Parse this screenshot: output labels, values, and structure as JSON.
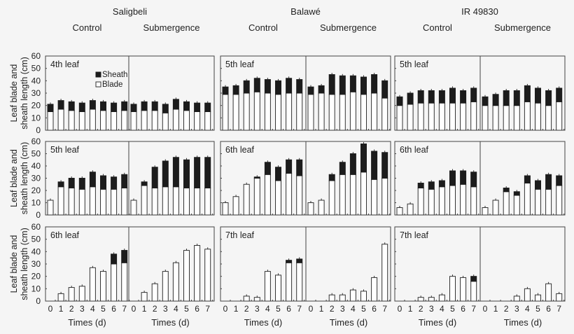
{
  "chart_data": {
    "type": "bar",
    "stacked": true,
    "ylim": [
      0,
      60
    ],
    "yticks": [
      0,
      10,
      20,
      30,
      40,
      50,
      60
    ],
    "xticks": [
      0,
      1,
      2,
      3,
      4,
      5,
      6,
      7
    ],
    "xlabel": "Times (d)",
    "ylabel_lines": [
      "Leaf blade and",
      "sheath length (cm)"
    ],
    "legend": [
      {
        "name": "Sheath",
        "color": "#1c1c1c"
      },
      {
        "name": "Blade",
        "color": "#ffffff"
      }
    ],
    "legend_placement": "top-right of first panel",
    "grid": false,
    "cultivars": [
      "Saligbeli",
      "Balawé",
      "IR 49830"
    ],
    "conditions": [
      "Control",
      "Submergence"
    ],
    "rows": [
      {
        "leaves": [
          "4th leaf",
          "5th leaf",
          "5th leaf"
        ],
        "panels": [
          {
            "blade": [
              15,
              17,
              16,
              15,
              17,
              16,
              15,
              16
            ],
            "sheath": [
              6,
              7,
              7,
              7,
              7,
              7,
              7,
              7
            ]
          },
          {
            "blade": [
              15,
              16,
              16,
              14,
              17,
              16,
              15,
              15
            ],
            "sheath": [
              6,
              7,
              7,
              7,
              8,
              7,
              7,
              7
            ]
          },
          {
            "blade": [
              29,
              29,
              30,
              31,
              30,
              29,
              30,
              30
            ],
            "sheath": [
              6,
              7,
              10,
              11,
              11,
              11,
              12,
              11
            ]
          },
          {
            "blade": [
              29,
              30,
              29,
              29,
              31,
              29,
              30,
              26
            ],
            "sheath": [
              6,
              6,
              16,
              15,
              13,
              14,
              15,
              14
            ]
          },
          {
            "blade": [
              20,
              21,
              22,
              22,
              22,
              22,
              22,
              23
            ],
            "sheath": [
              7,
              9,
              10,
              10,
              10,
              12,
              10,
              11
            ]
          },
          {
            "blade": [
              20,
              20,
              20,
              20,
              23,
              22,
              20,
              23
            ],
            "sheath": [
              7,
              9,
              12,
              12,
              13,
              12,
              12,
              11
            ]
          }
        ]
      },
      {
        "leaves": [
          "5th leaf",
          "6th leaf",
          "6th leaf"
        ],
        "panels": [
          {
            "blade": [
              12,
              23,
              22,
              21,
              23,
              21,
              21,
              22
            ],
            "sheath": [
              0,
              4,
              8,
              9,
              12,
              11,
              10,
              11
            ]
          },
          {
            "blade": [
              12,
              24,
              22,
              23,
              23,
              22,
              22,
              22
            ],
            "sheath": [
              0,
              3,
              17,
              21,
              24,
              23,
              25,
              25
            ]
          },
          {
            "blade": [
              10,
              15,
              25,
              30,
              33,
              28,
              34,
              32
            ],
            "sheath": [
              0,
              0,
              0,
              1,
              10,
              11,
              11,
              13
            ]
          },
          {
            "blade": [
              10,
              12,
              28,
              33,
              33,
              35,
              29,
              30
            ],
            "sheath": [
              0,
              0,
              5,
              10,
              17,
              23,
              23,
              21
            ]
          },
          {
            "blade": [
              6,
              9,
              22,
              21,
              23,
              24,
              25,
              23
            ],
            "sheath": [
              0,
              0,
              4,
              6,
              5,
              12,
              11,
              12
            ]
          },
          {
            "blade": [
              6,
              12,
              19,
              16,
              26,
              21,
              21,
              24
            ],
            "sheath": [
              0,
              0,
              3,
              3,
              6,
              7,
              12,
              8
            ]
          }
        ]
      },
      {
        "leaves": [
          "6th leaf",
          "7th leaf",
          "7th leaf"
        ],
        "panels": [
          {
            "blade": [
              null,
              6,
              11,
              12,
              27,
              24,
              30,
              31
            ],
            "sheath": [
              null,
              0,
              0,
              0,
              0,
              0,
              8,
              10
            ]
          },
          {
            "blade": [
              null,
              7,
              14,
              24,
              31,
              41,
              45,
              42
            ],
            "sheath": [
              null,
              0,
              0,
              0,
              0,
              0,
              0,
              0
            ]
          },
          {
            "blade": [
              null,
              null,
              4,
              3,
              24,
              21,
              31,
              31
            ],
            "sheath": [
              null,
              null,
              0,
              0,
              0,
              0,
              2,
              3
            ]
          },
          {
            "blade": [
              null,
              null,
              5,
              5,
              9,
              8,
              19,
              46
            ],
            "sheath": [
              null,
              null,
              0,
              0,
              0,
              0,
              0,
              0
            ]
          },
          {
            "blade": [
              null,
              null,
              3,
              3,
              5,
              20,
              19,
              16
            ],
            "sheath": [
              null,
              null,
              0,
              0,
              0,
              0,
              0,
              4
            ]
          },
          {
            "blade": [
              null,
              null,
              null,
              4,
              10,
              5,
              14,
              6
            ],
            "sheath": [
              null,
              null,
              null,
              0,
              0,
              0,
              0,
              0
            ]
          }
        ]
      }
    ]
  }
}
